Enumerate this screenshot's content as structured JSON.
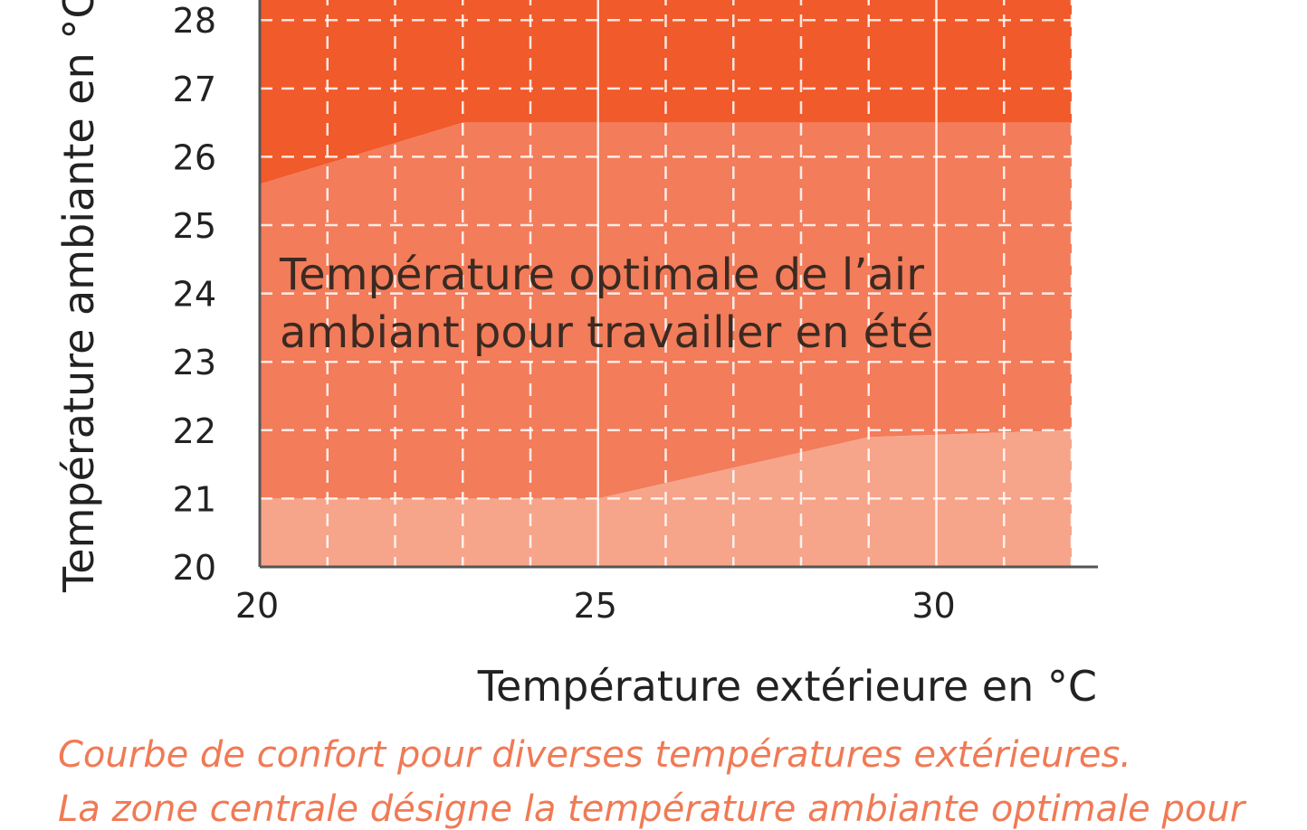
{
  "chart_data": {
    "type": "area",
    "title": "",
    "xlabel": "Température extérieure en °C",
    "ylabel": "Température ambiante en °C",
    "xlim": [
      20,
      32
    ],
    "ylim": [
      20,
      28.4
    ],
    "x_ticks": [
      20,
      25,
      30
    ],
    "y_ticks": [
      20,
      21,
      22,
      23,
      24,
      25,
      26,
      27,
      28
    ],
    "grid": "dashed",
    "zones": [
      {
        "name": "upper",
        "color": "#f15a2b",
        "lower_bound": [
          [
            20,
            25.6
          ],
          [
            23,
            26.5
          ],
          [
            32,
            26.5
          ]
        ],
        "upper_bound": [
          [
            20,
            28.4
          ],
          [
            32,
            28.4
          ]
        ]
      },
      {
        "name": "optimal",
        "label": "Température optimale de l’air ambiant pour travailler en été",
        "label_lines": [
          "Température optimale de l’air",
          "ambiant pour travailler en été"
        ],
        "color": "#f37c5a",
        "lower_bound": [
          [
            20,
            21
          ],
          [
            25,
            21
          ],
          [
            29,
            21.9
          ],
          [
            32,
            22
          ]
        ],
        "upper_bound": [
          [
            20,
            25.6
          ],
          [
            23,
            26.5
          ],
          [
            32,
            26.5
          ]
        ]
      },
      {
        "name": "lower",
        "color": "#f6a58a",
        "lower_bound": [
          [
            20,
            20
          ],
          [
            32,
            20
          ]
        ],
        "upper_bound": [
          [
            20,
            21
          ],
          [
            25,
            21
          ],
          [
            29,
            21.9
          ],
          [
            32,
            22
          ]
        ]
      }
    ]
  },
  "caption": {
    "line1": "Courbe de confort pour diverses températures extérieures.",
    "line2": "La zone centrale désigne la température ambiante optimale pour"
  }
}
